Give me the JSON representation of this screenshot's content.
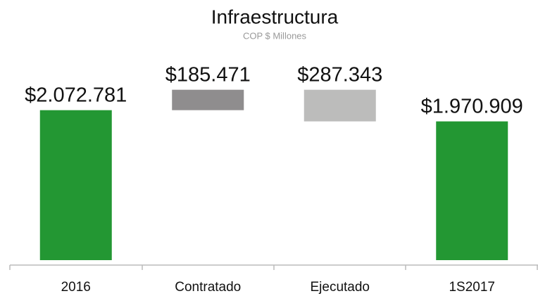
{
  "chart_data": {
    "type": "waterfall",
    "title": "Infraestructura",
    "subtitle": "COP $ Millones",
    "categories": [
      "2016",
      "Contratado",
      "Ejecutado",
      "1S2017"
    ],
    "values": [
      2072781,
      185471,
      287343,
      1970909
    ],
    "value_labels": [
      "$2.072.781",
      "$185.471",
      "$287.343",
      "$1.970.909"
    ],
    "kinds": [
      "total",
      "increase",
      "decrease",
      "total"
    ],
    "colors": {
      "total": "#239733",
      "increase": "#8f8d8e",
      "decrease": "#bcbcbb"
    },
    "ylim": [
      710000,
      2435000
    ]
  }
}
